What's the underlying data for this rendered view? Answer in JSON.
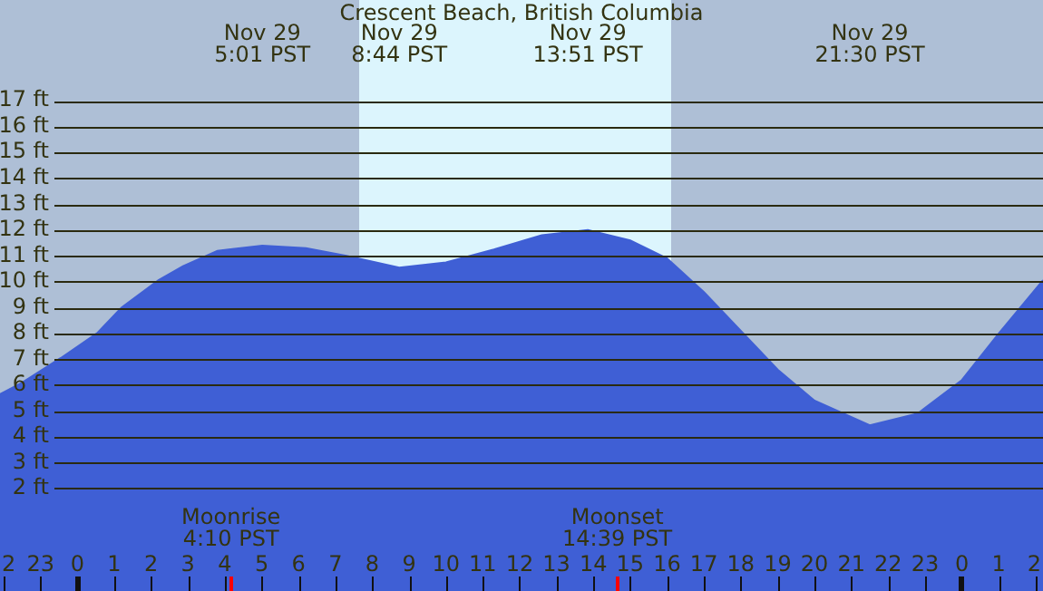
{
  "chart_data": {
    "type": "area",
    "title": "Crescent Beach, British Columbia",
    "x": [
      "--11-28T21:54",
      "--11-28T22:30",
      "--11-28T23:33",
      "--11-29T00:33",
      "--11-29T01:12",
      "--11-29T02:12",
      "--11-29T02:52",
      "--11-29T03:48",
      "--11-29T05:01",
      "--11-29T06:12",
      "--11-29T07:18",
      "--11-29T08:44",
      "--11-29T10:00",
      "--11-29T11:18",
      "--11-29T12:36",
      "--11-29T13:51",
      "--11-29T15:00",
      "--11-29T16:00",
      "--11-29T17:00",
      "--11-29T18:00",
      "--11-29T19:00",
      "--11-29T20:00",
      "--11-29T21:30",
      "--11-29T22:48",
      "--11-30T00:00",
      "--11-30T01:00",
      "--11-30T02:12"
    ],
    "values": [
      5.65,
      6.1,
      7.05,
      8.03,
      9.0,
      10.06,
      10.6,
      11.2,
      11.4,
      11.3,
      11.0,
      10.55,
      10.75,
      11.25,
      11.8,
      12.0,
      11.6,
      10.9,
      9.6,
      8.1,
      6.6,
      5.4,
      4.45,
      4.9,
      6.2,
      8.0,
      10.06
    ],
    "color": "#3f5fd5",
    "xlim": [
      "--11-28T21:54",
      "--11-30T02:12"
    ],
    "ylim": [
      0,
      20.9
    ],
    "xticks": [
      {
        "value": "--11-28T22:00",
        "label": "2"
      },
      {
        "value": "--11-28T23:00",
        "label": "23"
      },
      {
        "value": "--11-29T00:00",
        "label": "0"
      },
      {
        "value": "--11-29T01:00",
        "label": "1"
      },
      {
        "value": "--11-29T02:00",
        "label": "2"
      },
      {
        "value": "--11-29T03:00",
        "label": "3"
      },
      {
        "value": "--11-29T04:00",
        "label": "4"
      },
      {
        "value": "--11-29T05:00",
        "label": "5"
      },
      {
        "value": "--11-29T06:00",
        "label": "6"
      },
      {
        "value": "--11-29T07:00",
        "label": "7"
      },
      {
        "value": "--11-29T08:00",
        "label": "8"
      },
      {
        "value": "--11-29T09:00",
        "label": "9"
      },
      {
        "value": "--11-29T10:00",
        "label": "10"
      },
      {
        "value": "--11-29T11:00",
        "label": "11"
      },
      {
        "value": "--11-29T12:00",
        "label": "12"
      },
      {
        "value": "--11-29T13:00",
        "label": "13"
      },
      {
        "value": "--11-29T14:00",
        "label": "14"
      },
      {
        "value": "--11-29T15:00",
        "label": "15"
      },
      {
        "value": "--11-29T16:00",
        "label": "16"
      },
      {
        "value": "--11-29T17:00",
        "label": "17"
      },
      {
        "value": "--11-29T18:00",
        "label": "18"
      },
      {
        "value": "--11-29T19:00",
        "label": "19"
      },
      {
        "value": "--11-29T20:00",
        "label": "20"
      },
      {
        "value": "--11-29T21:00",
        "label": "21"
      },
      {
        "value": "--11-29T22:00",
        "label": "22"
      },
      {
        "value": "--11-29T23:00",
        "label": "23"
      },
      {
        "value": "--11-30T00:00",
        "label": "0"
      },
      {
        "value": "--11-30T01:00",
        "label": "1"
      },
      {
        "value": "--11-30T02:00",
        "label": "2"
      }
    ],
    "yticks": [
      {
        "value": 2,
        "label": "2 ft"
      },
      {
        "value": 3,
        "label": "3 ft"
      },
      {
        "value": 4,
        "label": "4 ft"
      },
      {
        "value": 5,
        "label": "5 ft"
      },
      {
        "value": 6,
        "label": "6 ft"
      },
      {
        "value": 7,
        "label": "7 ft"
      },
      {
        "value": 8,
        "label": "8 ft"
      },
      {
        "value": 9,
        "label": "9 ft"
      },
      {
        "value": 10,
        "label": "10 ft"
      },
      {
        "value": 11,
        "label": "11 ft"
      },
      {
        "value": 12,
        "label": "12 ft"
      },
      {
        "value": 13,
        "label": "13 ft"
      },
      {
        "value": 14,
        "label": "14 ft"
      },
      {
        "value": 15,
        "label": "15 ft"
      },
      {
        "value": 16,
        "label": "16 ft"
      },
      {
        "value": 17,
        "label": "17 ft"
      }
    ],
    "grid": "y",
    "bands": [
      {
        "axis": "x",
        "from": "--11-29T07:38",
        "to": "--11-29T16:06",
        "color": "#dcf5fd"
      }
    ],
    "ref_lines": [
      {
        "axis": "x",
        "value": "--11-29T04:10",
        "label": "Moonrise\n4:10 PST",
        "color": "#ff0000"
      },
      {
        "axis": "x",
        "value": "--11-29T14:39",
        "label": "Moonset\n14:39 PST",
        "color": "#ff0000"
      }
    ],
    "annotations": [
      "Nov 29\n5:01 PST",
      "Nov 29\n8:44 PST",
      "Nov 29\n13:51 PST",
      "Nov 29\n21:30 PST"
    ]
  }
}
